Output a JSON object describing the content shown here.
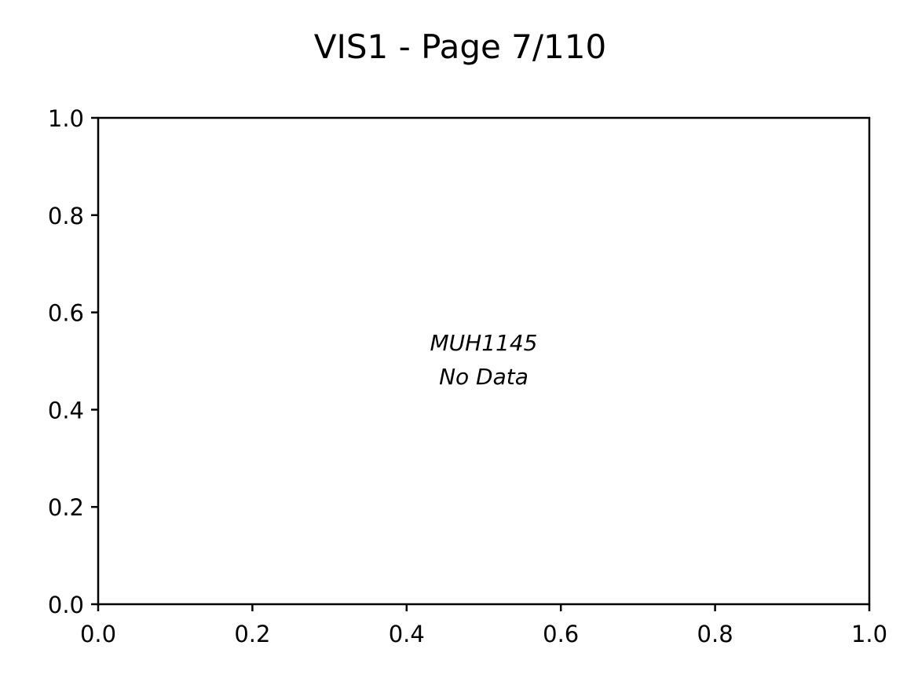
{
  "chart_data": {
    "type": "scatter",
    "title": "VIS1 - Page 7/110",
    "xlabel": "",
    "ylabel": "",
    "xlim": [
      0.0,
      1.0
    ],
    "ylim": [
      0.0,
      1.0
    ],
    "xticks": [
      "0.0",
      "0.2",
      "0.4",
      "0.6",
      "0.8",
      "1.0"
    ],
    "yticks": [
      "0.0",
      "0.2",
      "0.4",
      "0.6",
      "0.8",
      "1.0"
    ],
    "series": [],
    "grid": false,
    "annotation": {
      "line1": "MUH1145",
      "line2": "No Data"
    }
  }
}
